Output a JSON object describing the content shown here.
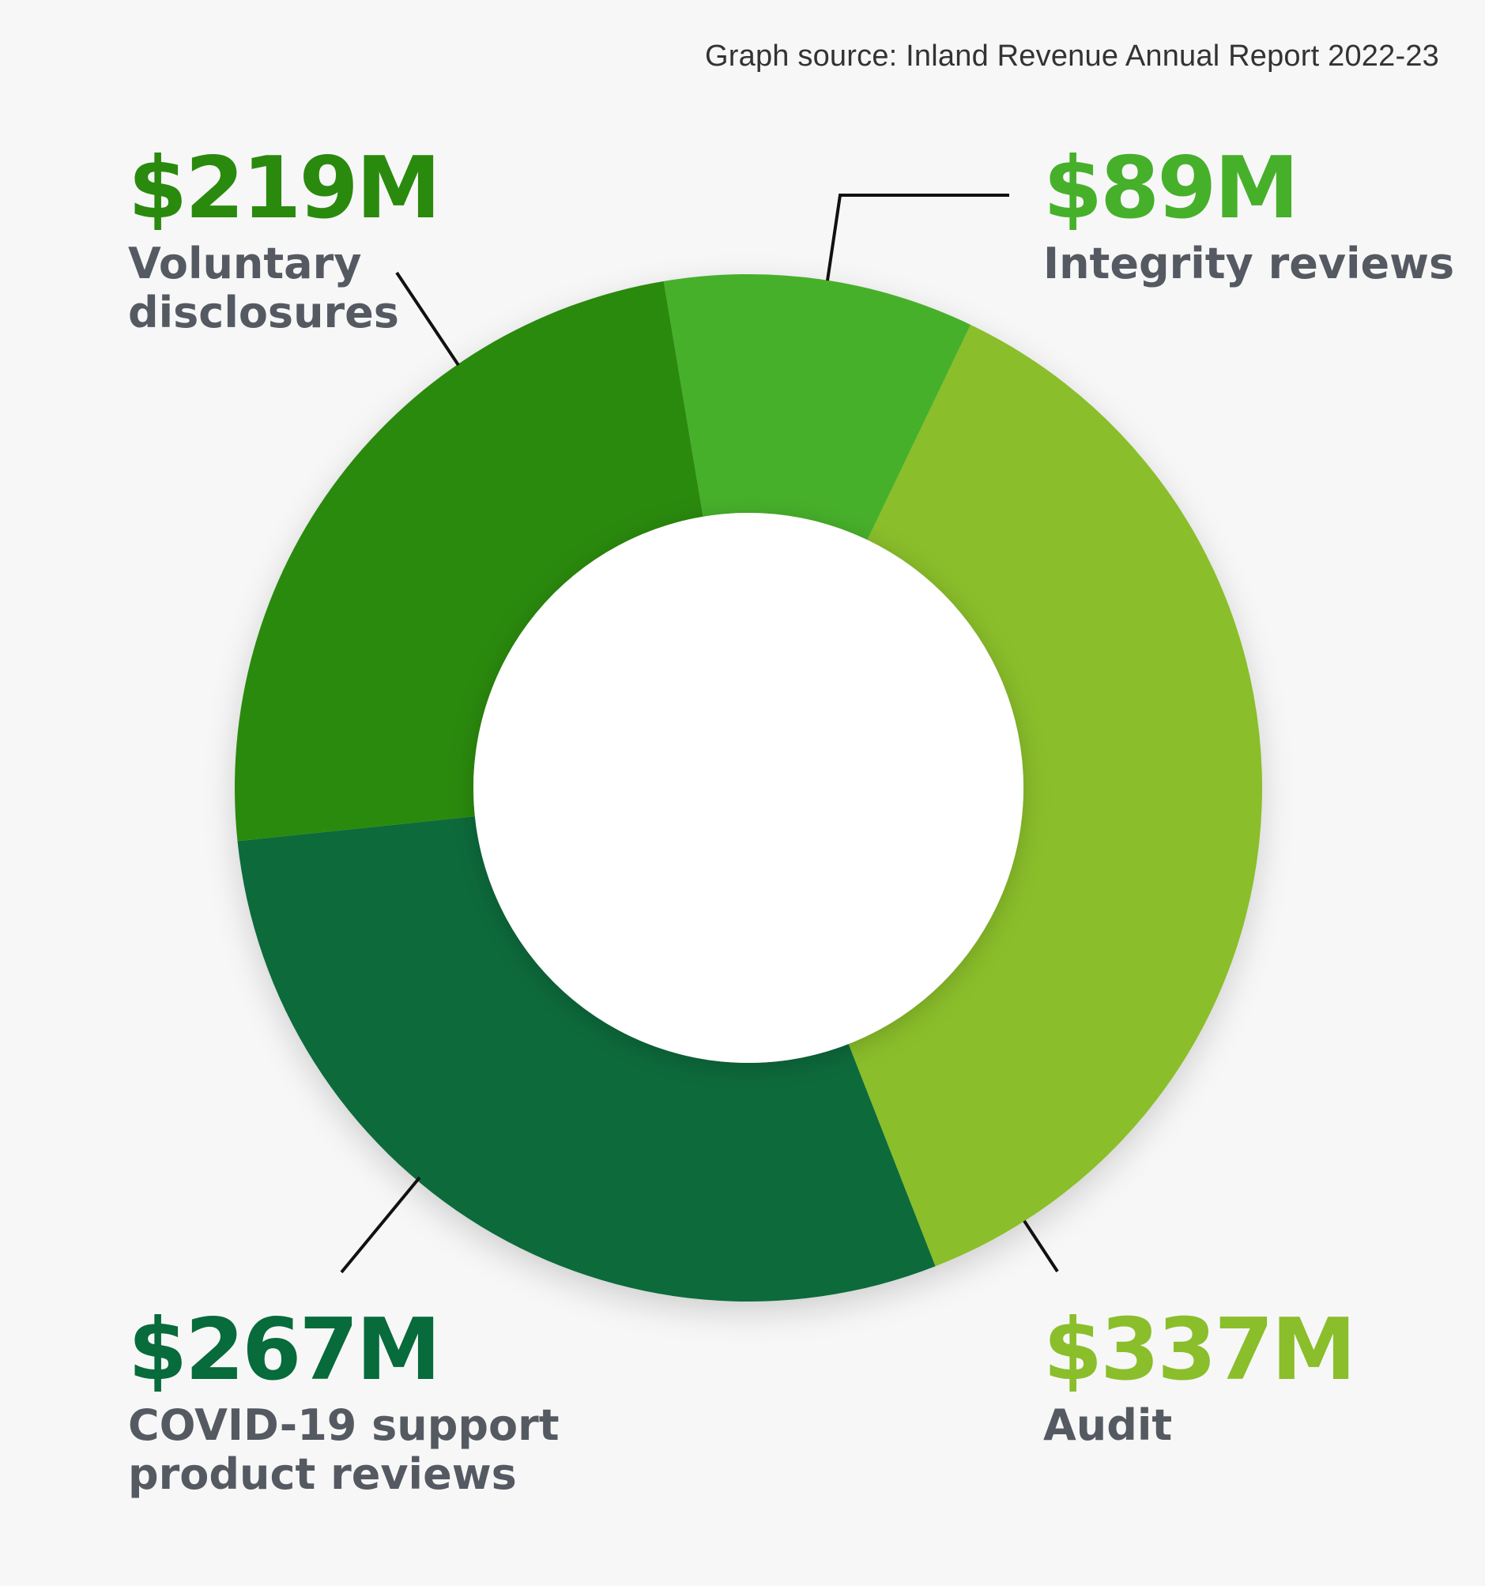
{
  "source_text": "Graph source: Inland Revenue Annual Report 2022-23",
  "chart_data": {
    "type": "pie",
    "variant": "donut",
    "unit": "$M",
    "start": "Integrity reviews segment begins near 12 o'clock, proceeding clockwise",
    "segments": [
      {
        "name": "Voluntary disclosures",
        "label_lines": "Voluntary\ndisclosures",
        "value": 219,
        "display": "$219M",
        "color": "#2a8a0e"
      },
      {
        "name": "Integrity reviews",
        "label_lines": "Integrity reviews",
        "value": 89,
        "display": "$89M",
        "color": "#46b02b"
      },
      {
        "name": "Audit",
        "label_lines": "Audit",
        "value": 337,
        "display": "$337M",
        "color": "#8abe2b"
      },
      {
        "name": "COVID-19 support product reviews",
        "label_lines": "COVID-19 support\nproduct reviews",
        "value": 267,
        "display": "$267M",
        "color": "#076b3b"
      }
    ]
  }
}
